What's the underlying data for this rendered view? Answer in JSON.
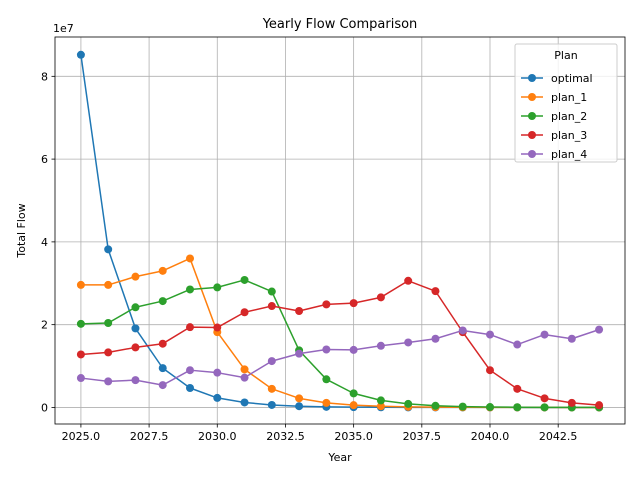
{
  "chart_data": {
    "type": "line",
    "title": "Yearly Flow Comparison",
    "xlabel": "Year",
    "ylabel": "Total Flow",
    "y_scale_label": "1e7",
    "xlim": [
      2024.05,
      2044.95
    ],
    "ylim": [
      -0.4,
      8.95
    ],
    "y_multiplier": 10000000,
    "x_ticks": [
      2025.0,
      2027.5,
      2030.0,
      2032.5,
      2035.0,
      2037.5,
      2040.0,
      2042.5
    ],
    "x_tick_labels": [
      "2025.0",
      "2027.5",
      "2030.0",
      "2032.5",
      "2035.0",
      "2037.5",
      "2040.0",
      "2042.5"
    ],
    "y_ticks": [
      0,
      2,
      4,
      6,
      8
    ],
    "y_tick_labels": [
      "0",
      "2",
      "4",
      "6",
      "8"
    ],
    "grid": true,
    "legend": {
      "title": "Plan",
      "placement": "top-right"
    },
    "x": [
      2025,
      2026,
      2027,
      2028,
      2029,
      2030,
      2031,
      2032,
      2033,
      2034,
      2035,
      2036,
      2037,
      2038,
      2039,
      2040,
      2041,
      2042,
      2043,
      2044
    ],
    "series": [
      {
        "name": "optimal",
        "color": "#1f77b4",
        "values": [
          8.52,
          3.82,
          1.91,
          0.95,
          0.47,
          0.23,
          0.12,
          0.06,
          0.03,
          0.015,
          0.007,
          0.004,
          0.002,
          0.001,
          0.0005,
          0.0003,
          0.0001,
          0.0001,
          0.0,
          0.0
        ]
      },
      {
        "name": "plan_1",
        "color": "#ff7f0e",
        "values": [
          2.96,
          2.96,
          3.16,
          3.3,
          3.6,
          1.82,
          0.92,
          0.45,
          0.22,
          0.11,
          0.055,
          0.03,
          0.015,
          0.007,
          0.004,
          0.002,
          0.001,
          0.0005,
          0.0002,
          0.0001
        ]
      },
      {
        "name": "plan_2",
        "color": "#2ca02c",
        "values": [
          2.02,
          2.04,
          2.42,
          2.57,
          2.85,
          2.9,
          3.08,
          2.8,
          1.38,
          0.68,
          0.34,
          0.17,
          0.085,
          0.04,
          0.02,
          0.01,
          0.005,
          0.0025,
          0.001,
          0.0006
        ]
      },
      {
        "name": "plan_3",
        "color": "#d62728",
        "values": [
          1.28,
          1.33,
          1.45,
          1.54,
          1.94,
          1.93,
          2.3,
          2.45,
          2.33,
          2.49,
          2.52,
          2.66,
          3.06,
          2.81,
          1.82,
          0.9,
          0.45,
          0.22,
          0.11,
          0.055
        ]
      },
      {
        "name": "plan_4",
        "color": "#9467bd",
        "values": [
          0.71,
          0.63,
          0.66,
          0.54,
          0.9,
          0.84,
          0.72,
          1.12,
          1.3,
          1.4,
          1.39,
          1.49,
          1.57,
          1.66,
          1.86,
          1.76,
          1.52,
          1.76,
          1.66,
          1.88
        ]
      }
    ]
  }
}
